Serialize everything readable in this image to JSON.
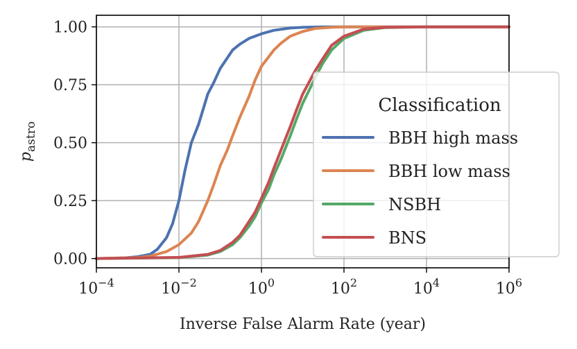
{
  "chart_data": {
    "type": "line",
    "title": "",
    "xlabel": "Inverse False Alarm Rate (year)",
    "ylabel": "p",
    "ylabel_sub": "astro",
    "xscale": "log",
    "xlim": [
      0.0001,
      1000000
    ],
    "ylim": [
      -0.04,
      1.05
    ],
    "grid": true,
    "x_ticks": [
      {
        "value": 0.0001,
        "base": "10",
        "exp": "−4"
      },
      {
        "value": 0.01,
        "base": "10",
        "exp": "−2"
      },
      {
        "value": 1,
        "base": "10",
        "exp": "0"
      },
      {
        "value": 100,
        "base": "10",
        "exp": "2"
      },
      {
        "value": 10000,
        "base": "10",
        "exp": "4"
      },
      {
        "value": 1000000,
        "base": "10",
        "exp": "6"
      }
    ],
    "y_ticks": [
      {
        "value": 0,
        "label": "0.00"
      },
      {
        "value": 0.25,
        "label": "0.25"
      },
      {
        "value": 0.5,
        "label": "0.50"
      },
      {
        "value": 0.75,
        "label": "0.75"
      },
      {
        "value": 1,
        "label": "1.00"
      }
    ],
    "legend": {
      "title": "Classification",
      "placement": "right"
    },
    "series": [
      {
        "name": "BBH high mass",
        "color": "#4c72b0",
        "x": [
          0.0001,
          0.0005,
          0.001,
          0.002,
          0.003,
          0.005,
          0.007,
          0.01,
          0.014,
          0.02,
          0.03,
          0.05,
          0.07,
          0.1,
          0.2,
          0.3,
          0.5,
          1,
          2,
          5,
          10,
          30,
          100,
          1000,
          1000000
        ],
        "y": [
          0.0,
          0.003,
          0.008,
          0.018,
          0.04,
          0.09,
          0.15,
          0.25,
          0.38,
          0.5,
          0.58,
          0.71,
          0.76,
          0.82,
          0.9,
          0.925,
          0.95,
          0.97,
          0.985,
          0.995,
          0.998,
          1.0,
          1.0,
          1.0,
          1.0
        ]
      },
      {
        "name": "BBH low mass",
        "color": "#dd8452",
        "x": [
          0.0001,
          0.001,
          0.002,
          0.005,
          0.01,
          0.02,
          0.03,
          0.05,
          0.07,
          0.1,
          0.15,
          0.2,
          0.3,
          0.5,
          0.7,
          1,
          2,
          3,
          5,
          10,
          20,
          50,
          100,
          1000,
          1000000
        ],
        "y": [
          0.0,
          0.004,
          0.01,
          0.03,
          0.06,
          0.11,
          0.16,
          0.25,
          0.32,
          0.4,
          0.47,
          0.53,
          0.61,
          0.7,
          0.77,
          0.83,
          0.9,
          0.93,
          0.96,
          0.98,
          0.993,
          0.998,
          1.0,
          1.0,
          1.0
        ]
      },
      {
        "name": "NSBH",
        "color": "#55a868",
        "x": [
          0.0001,
          0.01,
          0.05,
          0.1,
          0.2,
          0.3,
          0.5,
          0.7,
          1,
          1.5,
          2,
          3,
          5,
          7,
          10,
          20,
          30,
          50,
          100,
          300,
          1000,
          10000,
          1000000
        ],
        "y": [
          0.0,
          0.004,
          0.015,
          0.03,
          0.06,
          0.09,
          0.14,
          0.18,
          0.24,
          0.3,
          0.36,
          0.43,
          0.53,
          0.6,
          0.67,
          0.78,
          0.84,
          0.9,
          0.95,
          0.985,
          0.997,
          1.0,
          1.0
        ]
      },
      {
        "name": "BNS",
        "color": "#c44e52",
        "x": [
          0.0001,
          0.01,
          0.05,
          0.1,
          0.2,
          0.3,
          0.5,
          0.7,
          1,
          1.5,
          2,
          3,
          5,
          7,
          10,
          20,
          30,
          50,
          100,
          300,
          1000,
          10000,
          1000000
        ],
        "y": [
          0.0,
          0.005,
          0.018,
          0.035,
          0.07,
          0.1,
          0.16,
          0.2,
          0.26,
          0.33,
          0.39,
          0.47,
          0.57,
          0.64,
          0.71,
          0.81,
          0.86,
          0.92,
          0.96,
          0.99,
          0.998,
          1.0,
          1.0
        ]
      }
    ]
  }
}
